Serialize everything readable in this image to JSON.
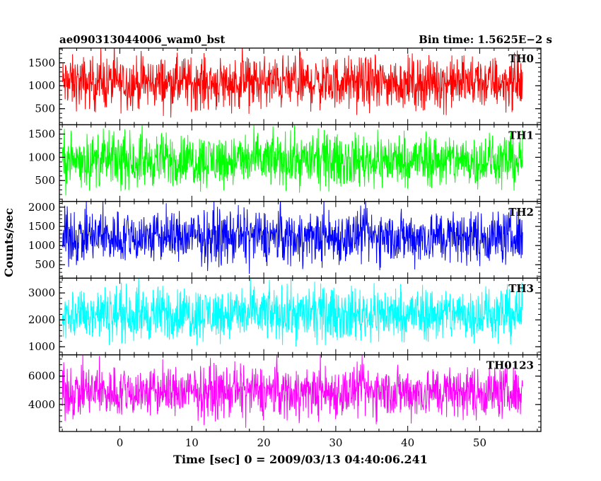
{
  "header": {
    "title": "ae090313044006_wam0_bst",
    "bin_time": "Bin time: 1.5625E−2 s"
  },
  "chart_data": {
    "type": "line",
    "xlabel": "Time [sec] 0 = 2009/03/13 04:40:06.241",
    "ylabel": "Counts/sec",
    "xlim": [
      -8.4,
      58.5
    ],
    "x_ticks": [
      0,
      10,
      20,
      30,
      40,
      50
    ],
    "x_data_range": [
      -8,
      56
    ],
    "panels": [
      {
        "name": "TH0",
        "color": "#ff0000",
        "ylim": [
          150,
          1820
        ],
        "yticks": [
          500,
          1000,
          1500
        ],
        "ymean": 970,
        "ylow": 230,
        "yhigh": 1820
      },
      {
        "name": "TH1",
        "color": "#00ff00",
        "ylim": [
          50,
          1700
        ],
        "yticks": [
          500,
          1000,
          1500
        ],
        "ymean": 800,
        "ylow": 90,
        "yhigh": 1700
      },
      {
        "name": "TH2",
        "color": "#0000ff",
        "ylim": [
          150,
          2150
        ],
        "yticks": [
          500,
          1000,
          1500,
          2000
        ],
        "ymean": 1050,
        "ylow": 200,
        "yhigh": 2150
      },
      {
        "name": "TH3",
        "color": "#00ffff",
        "ylim": [
          700,
          3550
        ],
        "yticks": [
          1000,
          2000,
          3000
        ],
        "ymean": 2050,
        "ylow": 750,
        "yhigh": 3550
      },
      {
        "name": "TH0123",
        "color": "#ff00ff",
        "ylim": [
          2100,
          7500
        ],
        "yticks": [
          4000,
          6000
        ],
        "ymean": 4700,
        "ylow": 2200,
        "yhigh": 7300
      }
    ]
  }
}
